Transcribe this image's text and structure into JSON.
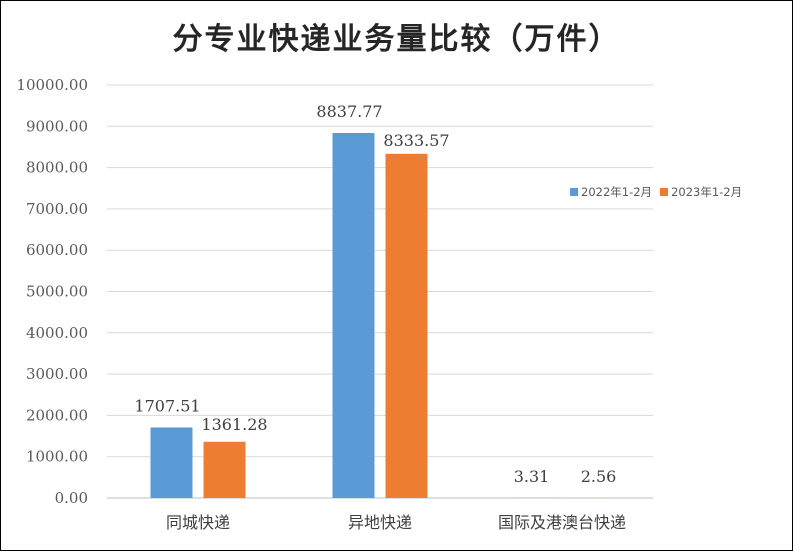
{
  "chart_data": {
    "type": "bar",
    "title": "分专业快递业务量比较（万件）",
    "categories": [
      "同城快递",
      "异地快递",
      "国际及港澳台快递"
    ],
    "series": [
      {
        "name": "2022年1-2月",
        "values": [
          1707.51,
          8837.77,
          3.31
        ],
        "labels": [
          "1707.51",
          "8837.77",
          "3.31"
        ],
        "color": "#5b9bd5"
      },
      {
        "name": "2023年1-2月",
        "values": [
          1361.28,
          8333.57,
          2.56
        ],
        "labels": [
          "1361.28",
          "8333.57",
          "2.56"
        ],
        "color": "#ed7d31"
      }
    ],
    "ylim": [
      0,
      10000
    ],
    "yticks": [
      "0.00",
      "1000.00",
      "2000.00",
      "3000.00",
      "4000.00",
      "5000.00",
      "6000.00",
      "7000.00",
      "8000.00",
      "9000.00",
      "10000.00"
    ],
    "grid": true,
    "legend_position": "right"
  }
}
